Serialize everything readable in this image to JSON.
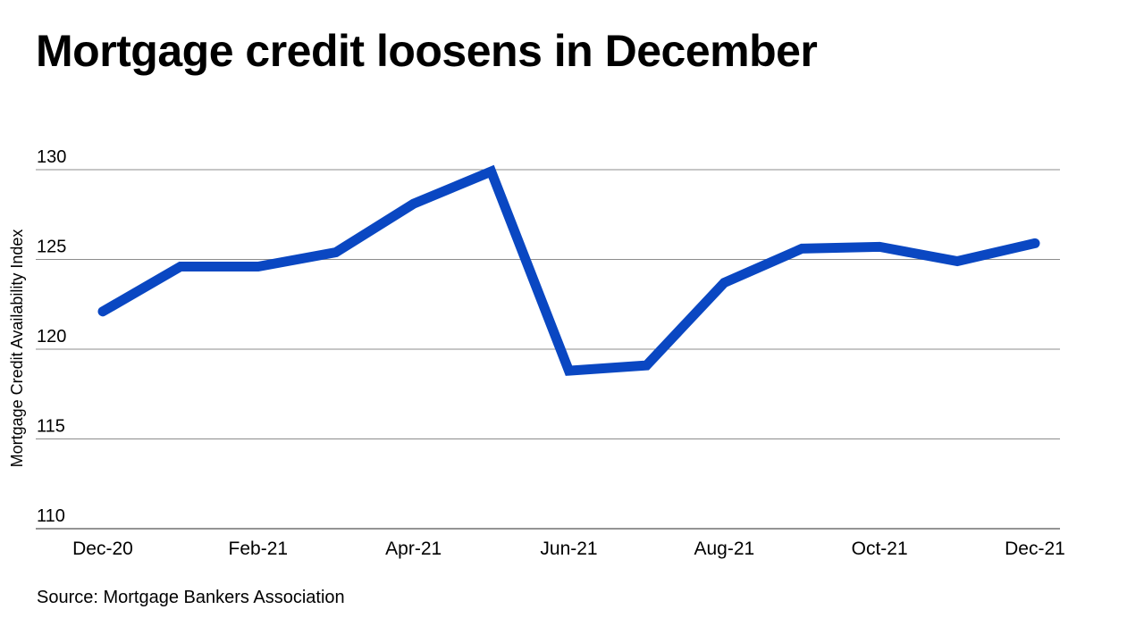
{
  "chart_data": {
    "type": "line",
    "title": "Mortgage credit loosens in December",
    "ylabel": "Mortgage Credit Availability Index",
    "xlabel": "",
    "ylim": [
      110,
      130
    ],
    "yticks": [
      110,
      115,
      120,
      125,
      130
    ],
    "x": [
      "Dec-20",
      "Jan-21",
      "Feb-21",
      "Mar-21",
      "Apr-21",
      "May-21",
      "Jun-21",
      "Jul-21",
      "Aug-21",
      "Sep-21",
      "Oct-21",
      "Nov-21",
      "Dec-21"
    ],
    "x_tick_labels": [
      "Dec-20",
      "Feb-21",
      "Apr-21",
      "Jun-21",
      "Aug-21",
      "Oct-21",
      "Dec-21"
    ],
    "series": [
      {
        "values": [
          122.1,
          124.6,
          124.6,
          125.4,
          128.1,
          129.9,
          118.8,
          119.1,
          123.7,
          125.6,
          125.7,
          124.9,
          125.9
        ]
      }
    ],
    "line_color": "#0a47c2",
    "grid": true,
    "source": "Source: Mortgage Bankers Association"
  }
}
